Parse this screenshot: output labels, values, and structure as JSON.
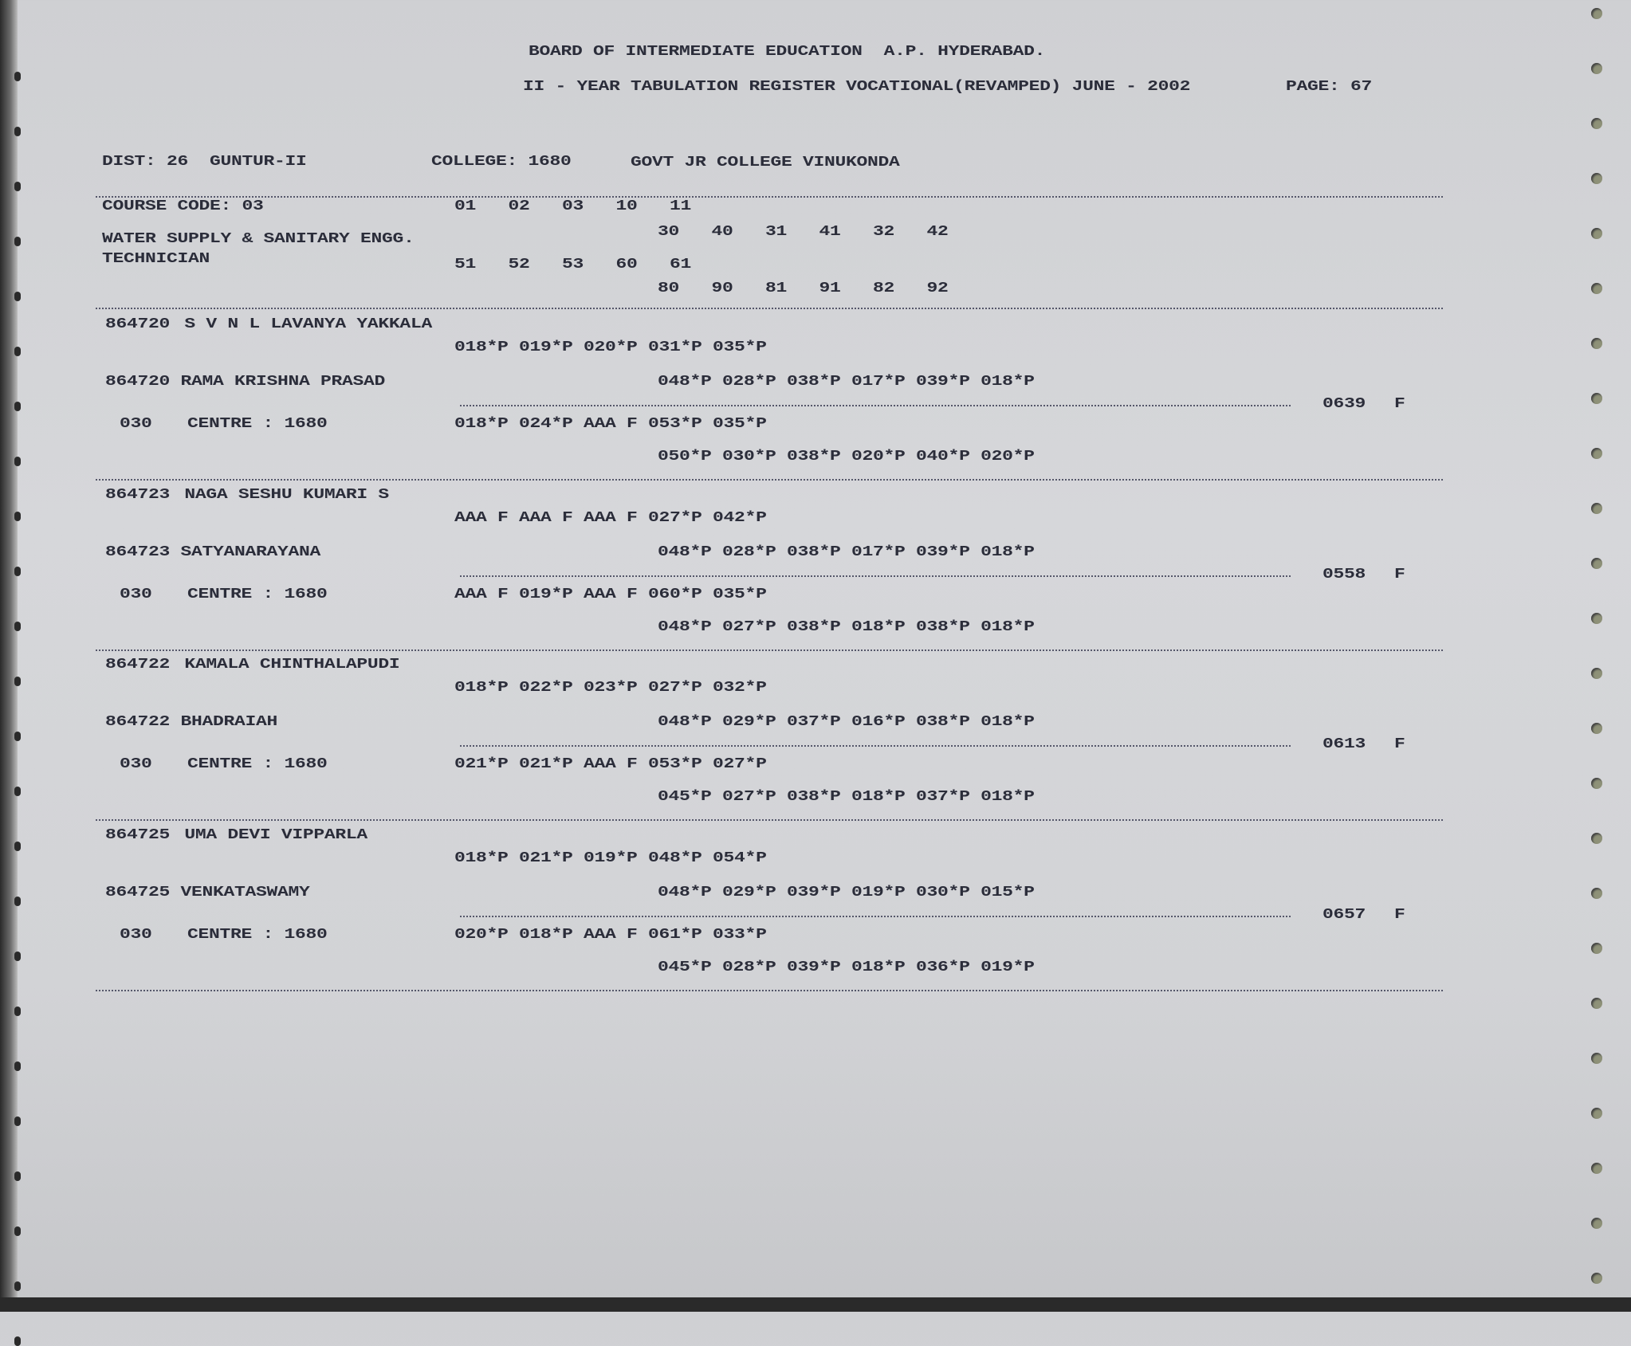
{
  "header": {
    "board": "BOARD OF INTERMEDIATE EDUCATION  A.P. HYDERABAD.",
    "register": "II - YEAR TABULATION REGISTER VOCATIONAL(REVAMPED) JUNE - 2002",
    "page": "PAGE: 67",
    "dist": "DIST: 26  GUNTUR-II",
    "college": "COLLEGE: 1680",
    "college_name": "GOVT JR COLLEGE VINUKONDA"
  },
  "course": {
    "code": "COURSE CODE: 03",
    "name_line1": "WATER SUPPLY & SANITARY ENGG.",
    "name_line2": "TECHNICIAN",
    "row1": "01   02   03   10   11",
    "row2": "30   40   31   41   32   42",
    "row3": "51   52   53   60   61",
    "row4": "80   90   81   91   82   92"
  },
  "students": [
    {
      "roll": "864720",
      "name": "S V N L LAVANYA YAKKALA",
      "father": "864720 RAMA KRISHNA PRASAD",
      "marks1": "018*P 019*P 020*P 031*P 035*P",
      "marks2": "048*P 028*P 038*P 017*P 039*P 018*P",
      "marks3": "018*P 024*P AAA F 053*P 035*P",
      "marks4": "050*P 030*P 038*P 020*P 040*P 020*P",
      "centre_code": "030",
      "centre": "CENTRE : 1680",
      "total": "0639",
      "result": "F"
    },
    {
      "roll": "864723",
      "name": "NAGA SESHU KUMARI S",
      "father": "864723 SATYANARAYANA",
      "marks1": "AAA F AAA F AAA F 027*P 042*P",
      "marks2": "048*P 028*P 038*P 017*P 039*P 018*P",
      "marks3": "AAA F 019*P AAA F 060*P 035*P",
      "marks4": "048*P 027*P 038*P 018*P 038*P 018*P",
      "centre_code": "030",
      "centre": "CENTRE : 1680",
      "total": "0558",
      "result": "F"
    },
    {
      "roll": "864722",
      "name": "KAMALA CHINTHALAPUDI",
      "father": "864722 BHADRAIAH",
      "marks1": "018*P 022*P 023*P 027*P 032*P",
      "marks2": "048*P 029*P 037*P 016*P 038*P 018*P",
      "marks3": "021*P 021*P AAA F 053*P 027*P",
      "marks4": "045*P 027*P 038*P 018*P 037*P 018*P",
      "centre_code": "030",
      "centre": "CENTRE : 1680",
      "total": "0613",
      "result": "F"
    },
    {
      "roll": "864725",
      "name": "UMA DEVI VIPPARLA",
      "father": "864725 VENKATASWAMY",
      "marks1": "018*P 021*P 019*P 048*P 054*P",
      "marks2": "048*P 029*P 039*P 019*P 030*P 015*P",
      "marks3": "020*P 018*P AAA F 061*P 033*P",
      "marks4": "045*P 028*P 039*P 018*P 036*P 019*P",
      "centre_code": "030",
      "centre": "CENTRE : 1680",
      "total": "0657",
      "result": "F"
    }
  ],
  "colors": {
    "paper": "#d3d4d7",
    "ink": "#2b2d3a"
  }
}
